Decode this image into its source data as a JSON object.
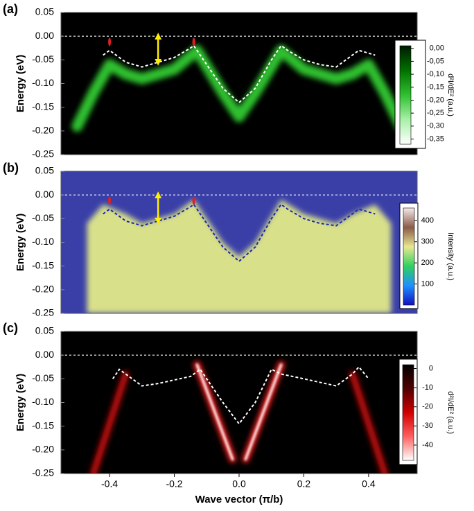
{
  "chart_data": [
    {
      "type": "line",
      "label": "(a)",
      "y_label": "Energy (eV)",
      "background": "#000000",
      "xlim": [
        -0.55,
        0.55
      ],
      "ylim": [
        -0.25,
        0.05
      ],
      "yticks": [
        0.05,
        {
          "value": 0,
          "label": "0.00"
        },
        -0.05,
        {
          "value": -0.1,
          "label": "-0.10"
        },
        -0.15,
        {
          "value": -0.2,
          "label": "-0.20"
        },
        -0.25
      ],
      "hline": 0,
      "series": [
        {
          "style": "glow",
          "color": "#2fc02f",
          "width": 16,
          "x": [
            -0.5,
            -0.45,
            -0.4,
            -0.35,
            -0.3,
            -0.2,
            -0.13,
            -0.05,
            0,
            0.05,
            0.13,
            0.2,
            0.3,
            0.35,
            0.4,
            0.45,
            0.5
          ],
          "values": [
            -0.19,
            -0.12,
            -0.06,
            -0.08,
            -0.09,
            -0.07,
            -0.03,
            -0.12,
            -0.17,
            -0.12,
            -0.03,
            -0.07,
            -0.09,
            -0.08,
            -0.06,
            -0.12,
            -0.19
          ]
        },
        {
          "style": "dashed",
          "color": "#ffffff",
          "x": [
            -0.42,
            -0.4,
            -0.35,
            -0.3,
            -0.25,
            -0.2,
            -0.15,
            -0.14,
            -0.1,
            -0.05,
            0,
            0.05,
            0.1,
            0.13,
            0.15,
            0.2,
            0.25,
            0.3,
            0.35,
            0.37,
            0.42
          ],
          "values": [
            -0.04,
            -0.03,
            -0.055,
            -0.065,
            -0.055,
            -0.045,
            -0.025,
            -0.02,
            -0.06,
            -0.11,
            -0.14,
            -0.11,
            -0.05,
            -0.02,
            -0.03,
            -0.05,
            -0.06,
            -0.065,
            -0.04,
            -0.03,
            -0.04
          ]
        }
      ],
      "markers": {
        "color": "#e02020",
        "x": [
          -0.4,
          -0.14
        ],
        "y": [
          -0.012,
          -0.012
        ]
      },
      "arrow": {
        "color": "#ffee00",
        "x": -0.25,
        "y": [
          0,
          -0.055
        ]
      },
      "colorbar": {
        "label": "d²I/dE² (a.u.)",
        "lim": [
          -0.37,
          0.01
        ],
        "colors": [
          "#ffffff",
          "#a8f0a8",
          "#30c030",
          "#007000",
          "#001a00"
        ],
        "ticks": [
          {
            "value": 0,
            "label": "0,00"
          },
          {
            "value": -0.05,
            "label": "-0,05"
          },
          {
            "value": -0.1,
            "label": "-0,10"
          },
          {
            "value": -0.15,
            "label": "-0,15"
          },
          {
            "value": -0.2,
            "label": "-0,20"
          },
          {
            "value": -0.25,
            "label": "-0,25"
          },
          {
            "value": -0.3,
            "label": "-0,30"
          },
          {
            "value": -0.35,
            "label": "-0,35"
          }
        ]
      }
    },
    {
      "type": "line",
      "label": "(b)",
      "y_label": "Energy (eV)",
      "background": "#3a3fa8",
      "xlim": [
        -0.55,
        0.55
      ],
      "ylim": [
        -0.25,
        0.05
      ],
      "yticks": [
        0.05,
        {
          "value": 0,
          "label": "0.00"
        },
        -0.05,
        {
          "value": -0.1,
          "label": "-0.10"
        },
        -0.15,
        {
          "value": -0.2,
          "label": "-0.20"
        },
        -0.25
      ],
      "hline": 0,
      "series": [
        {
          "style": "area",
          "color": "#d8e08a",
          "x": [
            -0.47,
            -0.42,
            -0.35,
            -0.3,
            -0.2,
            -0.14,
            -0.05,
            0,
            0.05,
            0.13,
            0.2,
            0.3,
            0.35,
            0.42,
            0.47
          ],
          "values": [
            -0.06,
            -0.02,
            -0.04,
            -0.06,
            -0.04,
            -0.01,
            -0.1,
            -0.13,
            -0.1,
            -0.01,
            -0.04,
            -0.06,
            -0.04,
            -0.02,
            -0.06
          ]
        },
        {
          "style": "dashed",
          "color": "#1a2aa0",
          "x": [
            -0.42,
            -0.4,
            -0.35,
            -0.3,
            -0.25,
            -0.2,
            -0.15,
            -0.14,
            -0.1,
            -0.05,
            0,
            0.05,
            0.1,
            0.13,
            0.15,
            0.2,
            0.25,
            0.3,
            0.35,
            0.37,
            0.42
          ],
          "values": [
            -0.04,
            -0.03,
            -0.055,
            -0.065,
            -0.055,
            -0.045,
            -0.025,
            -0.02,
            -0.06,
            -0.11,
            -0.14,
            -0.11,
            -0.05,
            -0.02,
            -0.03,
            -0.05,
            -0.06,
            -0.065,
            -0.04,
            -0.03,
            -0.04
          ]
        }
      ],
      "markers": {
        "color": "#e02020",
        "x": [
          -0.4,
          -0.14
        ],
        "y": [
          -0.012,
          -0.012
        ]
      },
      "arrow": {
        "color": "#ffee00",
        "x": -0.25,
        "y": [
          0,
          -0.055
        ]
      },
      "colorbar": {
        "label": "Intensity (a.u.)",
        "lim": [
          0,
          460
        ],
        "colors": [
          "#1010c0",
          "#1e90ff",
          "#30d060",
          "#e8e890",
          "#8a5a4a",
          "#f5eaea"
        ],
        "ticks": [
          100,
          200,
          300,
          400
        ]
      }
    },
    {
      "type": "line",
      "label": "(c)",
      "y_label": "Energy (eV)",
      "x_label": "Wave vector (π/b)",
      "background": "#000000",
      "xlim": [
        -0.55,
        0.55
      ],
      "ylim": [
        -0.25,
        0.05
      ],
      "yticks": [
        0.05,
        {
          "value": 0,
          "label": "0.00"
        },
        -0.05,
        {
          "value": -0.1,
          "label": "-0.10"
        },
        -0.15,
        {
          "value": -0.2,
          "label": "-0.20"
        },
        -0.25
      ],
      "xticks": [
        -0.4,
        -0.2,
        {
          "value": 0,
          "label": "0.0"
        },
        0.2,
        0.4
      ],
      "hline": 0,
      "series": [
        {
          "style": "glow",
          "color": "#ff2020",
          "core": "#ffffff",
          "width": 10,
          "x": [
            -0.13,
            -0.02
          ],
          "values": [
            -0.02,
            -0.22
          ]
        },
        {
          "style": "glow",
          "color": "#ff2020",
          "core": "#ffffff",
          "width": 10,
          "x": [
            0.13,
            0.02
          ],
          "values": [
            -0.02,
            -0.22
          ]
        },
        {
          "style": "glow",
          "color": "#d01010",
          "width": 9,
          "x": [
            -0.35,
            -0.45
          ],
          "values": [
            -0.04,
            -0.25
          ]
        },
        {
          "style": "glow",
          "color": "#d01010",
          "width": 9,
          "x": [
            0.35,
            0.45
          ],
          "values": [
            -0.04,
            -0.25
          ]
        },
        {
          "style": "dashed",
          "color": "#ffffff",
          "x": [
            -0.39,
            -0.37,
            -0.3,
            -0.25,
            -0.15,
            -0.12,
            -0.05,
            0,
            0.05,
            0.1,
            0.13,
            0.2,
            0.3,
            0.35,
            0.37,
            0.4
          ],
          "values": [
            -0.05,
            -0.03,
            -0.065,
            -0.06,
            -0.045,
            -0.03,
            -0.1,
            -0.145,
            -0.1,
            -0.03,
            -0.04,
            -0.05,
            -0.065,
            -0.04,
            -0.025,
            -0.05
          ]
        }
      ],
      "colorbar": {
        "label": "d²I/dE² (a.u.)",
        "lim": [
          -48,
          2
        ],
        "colors": [
          "#ffffff",
          "#ff6060",
          "#d00000",
          "#500000",
          "#000000"
        ],
        "ticks": [
          0,
          -10,
          -20,
          -30,
          -40
        ]
      }
    }
  ]
}
